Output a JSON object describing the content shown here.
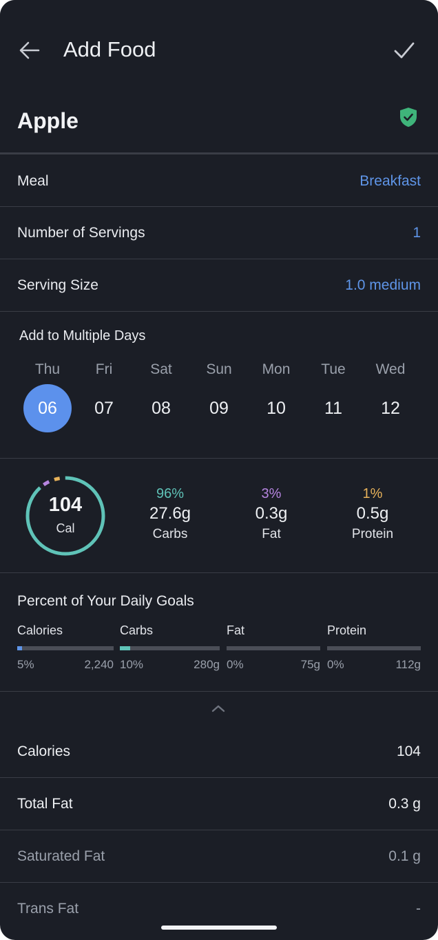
{
  "header": {
    "title": "Add Food"
  },
  "food": {
    "name": "Apple"
  },
  "rows": [
    {
      "label": "Meal",
      "value": "Breakfast"
    },
    {
      "label": "Number of Servings",
      "value": "1"
    },
    {
      "label": "Serving Size",
      "value": "1.0 medium"
    }
  ],
  "days": {
    "title": "Add to Multiple Days",
    "items": [
      {
        "name": "Thu",
        "num": "06",
        "selected": true
      },
      {
        "name": "Fri",
        "num": "07",
        "selected": false
      },
      {
        "name": "Sat",
        "num": "08",
        "selected": false
      },
      {
        "name": "Sun",
        "num": "09",
        "selected": false
      },
      {
        "name": "Mon",
        "num": "10",
        "selected": false
      },
      {
        "name": "Tue",
        "num": "11",
        "selected": false
      },
      {
        "name": "Wed",
        "num": "12",
        "selected": false
      }
    ]
  },
  "summary": {
    "calories": "104",
    "cal_label": "Cal",
    "macros": [
      {
        "pct": "96%",
        "value": "27.6g",
        "name": "Carbs",
        "color": "#5fc3b8"
      },
      {
        "pct": "3%",
        "value": "0.3g",
        "name": "Fat",
        "color": "#b685e0"
      },
      {
        "pct": "1%",
        "value": "0.5g",
        "name": "Protein",
        "color": "#e8b25a"
      }
    ]
  },
  "goals": {
    "title": "Percent of Your Daily Goals",
    "items": [
      {
        "label": "Calories",
        "pct": "5%",
        "total": "2,240",
        "fill_fraction": 0.05,
        "color": "#5f95e8"
      },
      {
        "label": "Carbs",
        "pct": "10%",
        "total": "280g",
        "fill_fraction": 0.1,
        "color": "#5fc3b8"
      },
      {
        "label": "Fat",
        "pct": "0%",
        "total": "75g",
        "fill_fraction": 0.0,
        "color": "#b685e0"
      },
      {
        "label": "Protein",
        "pct": "0%",
        "total": "112g",
        "fill_fraction": 0.0,
        "color": "#e8b25a"
      }
    ]
  },
  "nutrition": [
    {
      "label": "Calories",
      "value": "104",
      "muted": false
    },
    {
      "label": "Total Fat",
      "value": "0.3 g",
      "muted": false
    },
    {
      "label": "Saturated Fat",
      "value": "0.1 g",
      "muted": true
    },
    {
      "label": "Trans Fat",
      "value": "-",
      "muted": true
    }
  ],
  "icons": {
    "back": "arrow-left-icon",
    "confirm": "checkmark-icon",
    "verified": "shield-check-icon",
    "collapse": "chevron-up-icon"
  },
  "colors": {
    "background": "#1b1e26",
    "accent": "#5f95e8",
    "verified": "#3fb47a"
  }
}
